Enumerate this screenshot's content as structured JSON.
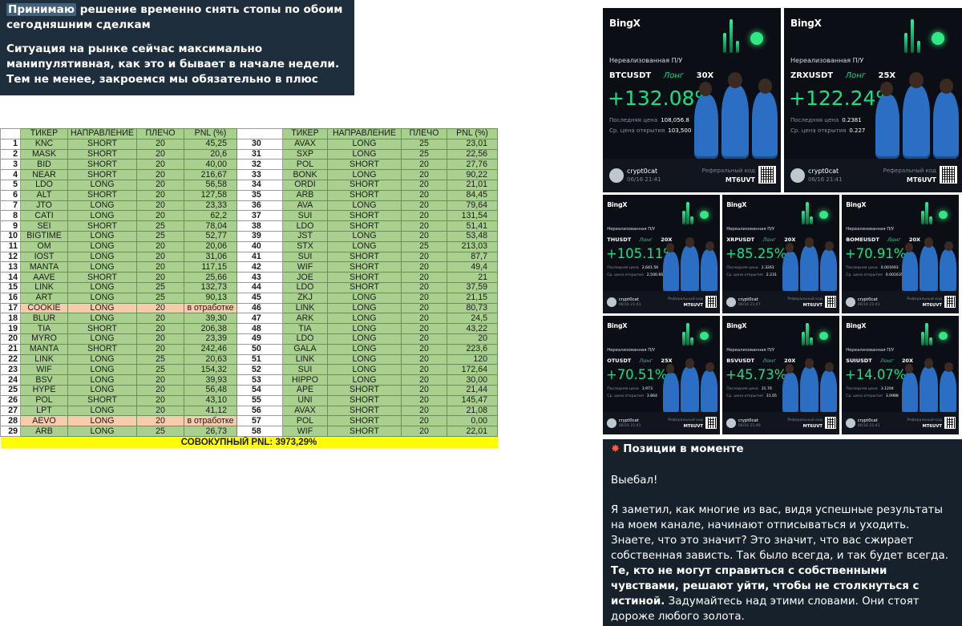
{
  "message_top": {
    "highlight": "Принимаю",
    "line1_rest": " решение временно снять стопы по обоим сегодняшним сделкам",
    "line2": "Ситуация на рынке сейчас максимально манипулятивная, как это и бывает в начале недели. Тем не менее, закроемся мы обязательно в плюс"
  },
  "table": {
    "headers": [
      "ТИКЕР",
      "НАПРАВЛЕНИЕ",
      "ПЛЕЧО",
      "PNL (%)"
    ],
    "rows_left": [
      [
        "1",
        "KNC",
        "SHORT",
        "20",
        "45,25"
      ],
      [
        "2",
        "MASK",
        "SHORT",
        "20",
        "20,6"
      ],
      [
        "3",
        "BID",
        "SHORT",
        "20",
        "40,00"
      ],
      [
        "4",
        "NEAR",
        "SHORT",
        "20",
        "216,67"
      ],
      [
        "5",
        "LDO",
        "LONG",
        "20",
        "56,58"
      ],
      [
        "6",
        "ALT",
        "SHORT",
        "20",
        "127,58"
      ],
      [
        "7",
        "JTO",
        "LONG",
        "20",
        "23,33"
      ],
      [
        "8",
        "CATI",
        "LONG",
        "20",
        "62,2"
      ],
      [
        "9",
        "SEI",
        "SHORT",
        "25",
        "78,04"
      ],
      [
        "10",
        "BIGTIME",
        "LONG",
        "25",
        "52,77"
      ],
      [
        "11",
        "OM",
        "LONG",
        "20",
        "20,06"
      ],
      [
        "12",
        "IOST",
        "LONG",
        "20",
        "31,06"
      ],
      [
        "13",
        "MANTA",
        "LONG",
        "20",
        "117,15"
      ],
      [
        "14",
        "AAVE",
        "SHORT",
        "20",
        "25,66"
      ],
      [
        "15",
        "LINK",
        "LONG",
        "25",
        "132,73"
      ],
      [
        "16",
        "ART",
        "LONG",
        "25",
        "90,13"
      ],
      [
        "17",
        "COOKIE",
        "LONG",
        "20",
        "в отработке"
      ],
      [
        "18",
        "BLUR",
        "LONG",
        "20",
        "39,30"
      ],
      [
        "19",
        "TIA",
        "SHORT",
        "20",
        "206,38"
      ],
      [
        "20",
        "MYRO",
        "LONG",
        "20",
        "23,39"
      ],
      [
        "21",
        "MANTA",
        "SHORT",
        "20",
        "242,46"
      ],
      [
        "22",
        "LINK",
        "LONG",
        "25",
        "20,63"
      ],
      [
        "23",
        "WIF",
        "LONG",
        "25",
        "154,32"
      ],
      [
        "24",
        "BSV",
        "LONG",
        "20",
        "39,93"
      ],
      [
        "25",
        "HYPE",
        "LONG",
        "20",
        "56,48"
      ],
      [
        "26",
        "POL",
        "SHORT",
        "20",
        "43,10"
      ],
      [
        "27",
        "LPT",
        "LONG",
        "20",
        "41,12"
      ],
      [
        "28",
        "AEVO",
        "LONG",
        "20",
        "в отработке"
      ],
      [
        "29",
        "ARB",
        "LONG",
        "25",
        "26,73"
      ]
    ],
    "rows_right": [
      [
        "30",
        "AVAX",
        "LONG",
        "25",
        "23,01"
      ],
      [
        "31",
        "SXP",
        "LONG",
        "25",
        "22,56"
      ],
      [
        "32",
        "POL",
        "SHORT",
        "20",
        "27,76"
      ],
      [
        "33",
        "BONK",
        "LONG",
        "20",
        "90,22"
      ],
      [
        "34",
        "ORDI",
        "SHORT",
        "20",
        "21,01"
      ],
      [
        "35",
        "ARB",
        "SHORT",
        "20",
        "84,45"
      ],
      [
        "36",
        "AVA",
        "LONG",
        "20",
        "79,64"
      ],
      [
        "37",
        "SUI",
        "SHORT",
        "20",
        "131,54"
      ],
      [
        "38",
        "LDO",
        "SHORT",
        "20",
        "51,41"
      ],
      [
        "39",
        "JST",
        "LONG",
        "20",
        "53,48"
      ],
      [
        "40",
        "STX",
        "LONG",
        "25",
        "213,03"
      ],
      [
        "41",
        "SUI",
        "SHORT",
        "20",
        "87,7"
      ],
      [
        "42",
        "WIF",
        "SHORT",
        "20",
        "49,4"
      ],
      [
        "43",
        "JOE",
        "SHORT",
        "20",
        "21"
      ],
      [
        "44",
        "LDO",
        "SHORT",
        "20",
        "37,59"
      ],
      [
        "45",
        "ZKJ",
        "LONG",
        "20",
        "21,15"
      ],
      [
        "46",
        "LINK",
        "LONG",
        "20",
        "80,73"
      ],
      [
        "47",
        "ARK",
        "LONG",
        "20",
        "24,5"
      ],
      [
        "48",
        "TIA",
        "LONG",
        "20",
        "43,22"
      ],
      [
        "49",
        "LDO",
        "LONG",
        "20",
        "20"
      ],
      [
        "50",
        "GALA",
        "LONG",
        "20",
        "223,6"
      ],
      [
        "51",
        "LINK",
        "LONG",
        "20",
        "120"
      ],
      [
        "52",
        "SUI",
        "LONG",
        "20",
        "172,64"
      ],
      [
        "53",
        "HIPPO",
        "LONG",
        "20",
        "30,00"
      ],
      [
        "54",
        "APE",
        "SHORT",
        "20",
        "21,44"
      ],
      [
        "55",
        "UNI",
        "SHORT",
        "20",
        "145,47"
      ],
      [
        "56",
        "AVAX",
        "SHORT",
        "20",
        "21,08"
      ],
      [
        "57",
        "POL",
        "SHORT",
        "20",
        "0,00"
      ],
      [
        "58",
        "WIF",
        "SHORT",
        "20",
        "22,01"
      ]
    ],
    "total": "СОВОКУПНЫЙ PNL: 3973,29%"
  },
  "cards": [
    {
      "brand": "BingX",
      "label": "Нереализованная П/У",
      "pair": "BTCUSDT",
      "side": "Лонг",
      "lev": "30X",
      "pct": "+132.08%",
      "last_label": "Последняя цена",
      "last": "108,056.8",
      "open_label": "Ср. цена открытия",
      "open": "103,500",
      "user": "crypt0cat",
      "date": "06/16 21:41",
      "ref_label": "Реферальный код",
      "ref": "MT6UVT"
    },
    {
      "brand": "BingX",
      "label": "Нереализованная П/У",
      "pair": "ZRXUSDT",
      "side": "Лонг",
      "lev": "25X",
      "pct": "+122.24%",
      "last_label": "Последняя цена",
      "last": "0.2381",
      "open_label": "Ср. цена открытия",
      "open": "0.227",
      "user": "crypt0cat",
      "date": "06/16 21:41",
      "ref_label": "Реферальный код",
      "ref": "MT6UVT"
    },
    {
      "brand": "BingX",
      "label": "Нереализованная П/У",
      "pair": "THUSDT",
      "side": "Лонг",
      "lev": "20X",
      "pct": "+105.11%",
      "last_label": "Последняя цена",
      "last": "2,641.56",
      "open_label": "Ср. цена открытия",
      "open": "2,500.66",
      "user": "crypt0cat",
      "date": "06/16 21:41",
      "ref_label": "Реферальный код",
      "ref": "MT6UVT"
    },
    {
      "brand": "BingX",
      "label": "Нереализованная П/У",
      "pair": "XRPUSDT",
      "side": "Лонг",
      "lev": "20X",
      "pct": "+85.25%",
      "last_label": "Последняя цена",
      "last": "2.3261",
      "open_label": "Ср. цена открытия",
      "open": "2.231",
      "user": "crypt0cat",
      "date": "06/16 21:47",
      "ref_label": "Реферальный код",
      "ref": "MT6UVT"
    },
    {
      "brand": "BingX",
      "label": "Нереализованная П/У",
      "pair": "BOMEUSDT",
      "side": "Лонг",
      "lev": "20X",
      "pct": "+70.91%",
      "last_label": "Последняя цена",
      "last": "0.001693",
      "open_label": "Ср. цена открытия",
      "open": "0.001635",
      "user": "crypt0cat",
      "date": "06/16 21:41",
      "ref_label": "Реферальный код",
      "ref": "MT6UVT"
    },
    {
      "brand": "BingX",
      "label": "Нереализованная П/У",
      "pair": "OTUSDT",
      "side": "Лонг",
      "lev": "25X",
      "pct": "+70.51%",
      "last_label": "Последняя цена",
      "last": "3.973",
      "open_label": "Ср. цена открытия",
      "open": "3.864",
      "user": "crypt0cat",
      "date": "06/16 21:41",
      "ref_label": "Реферальный код",
      "ref": "MT6UVT"
    },
    {
      "brand": "BingX",
      "label": "Нереализованная П/У",
      "pair": "BSVUSDT",
      "side": "Лонг",
      "lev": "20X",
      "pct": "+45.73%",
      "last_label": "Последняя цена",
      "last": "31.76",
      "open_label": "Ср. цена открытия",
      "open": "31.05",
      "user": "crypt0cat",
      "date": "06/16 21:46",
      "ref_label": "Реферальный код",
      "ref": "MT6UVT"
    },
    {
      "brand": "BingX",
      "label": "Нереализованная П/У",
      "pair": "SUIUSDT",
      "side": "Лонг",
      "lev": "20X",
      "pct": "+14.07%",
      "last_label": "Последняя цена",
      "last": "3.1204",
      "open_label": "Ср. цена открытия",
      "open": "3.0988",
      "user": "crypt0cat",
      "date": "06/16 21:41",
      "ref_label": "Реферальный код",
      "ref": "MT6UVT"
    }
  ],
  "post": {
    "title_icon": "collision-icon",
    "title": "Позиции в моменте",
    "p1": "Выебал!",
    "p2_a": "Я заметил, как многие из вас, видя успешные результаты на моем канале, начинают отписываться и уходить. Знаете, что это значит? Это значит, что вас сжирает собственная зависть. Так было всегда, и так будет всегда. ",
    "p2_bold": "Те, кто не могут справиться с собственными чувствами, решают уйти, чтобы не столкнуться с истиной.",
    "p2_b": " Задумайтесь над этими словами. Они стоят дороже любого золота."
  },
  "colors": {
    "chat_bg": "#17212b",
    "accent_green": "#16e087",
    "table_green": "#a9d08e",
    "table_orange": "#f8cbad",
    "total_yellow": "#ffff00"
  }
}
